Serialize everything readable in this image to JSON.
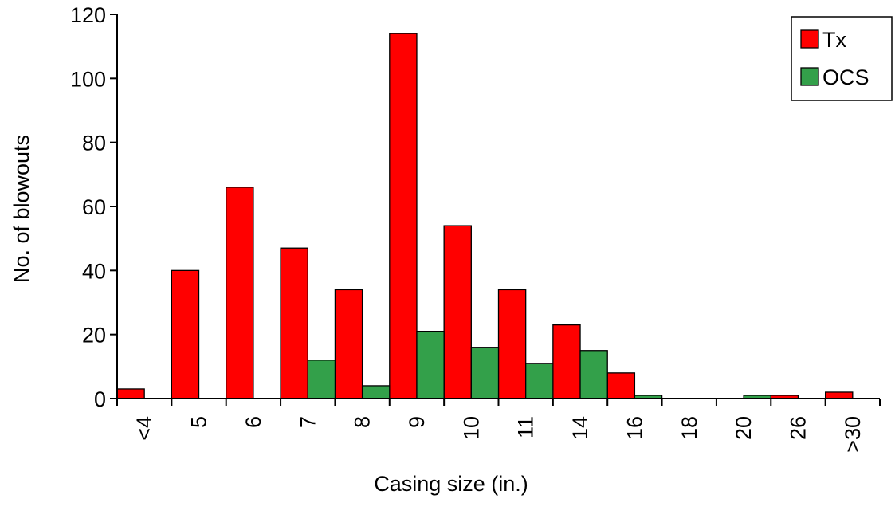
{
  "chart_data": {
    "type": "bar",
    "categories": [
      "<4",
      "5",
      "6",
      "7",
      "8",
      "9",
      "10",
      "11",
      "14",
      "16",
      "18",
      "20",
      "26",
      ">30"
    ],
    "series": [
      {
        "name": "Tx",
        "color": "#ff0000",
        "values": [
          3,
          40,
          66,
          47,
          34,
          114,
          54,
          34,
          23,
          8,
          0,
          0,
          1,
          2
        ]
      },
      {
        "name": "OCS",
        "color": "#33a04a",
        "values": [
          0,
          0,
          0,
          12,
          4,
          21,
          16,
          11,
          15,
          1,
          0,
          1,
          0,
          0
        ]
      }
    ],
    "xlabel": "Casing size (in.)",
    "ylabel": "No. of blowouts",
    "ylim": [
      0,
      120
    ],
    "yticks": [
      0,
      20,
      40,
      60,
      80,
      100,
      120
    ],
    "grid": false,
    "legend": "top-right"
  }
}
